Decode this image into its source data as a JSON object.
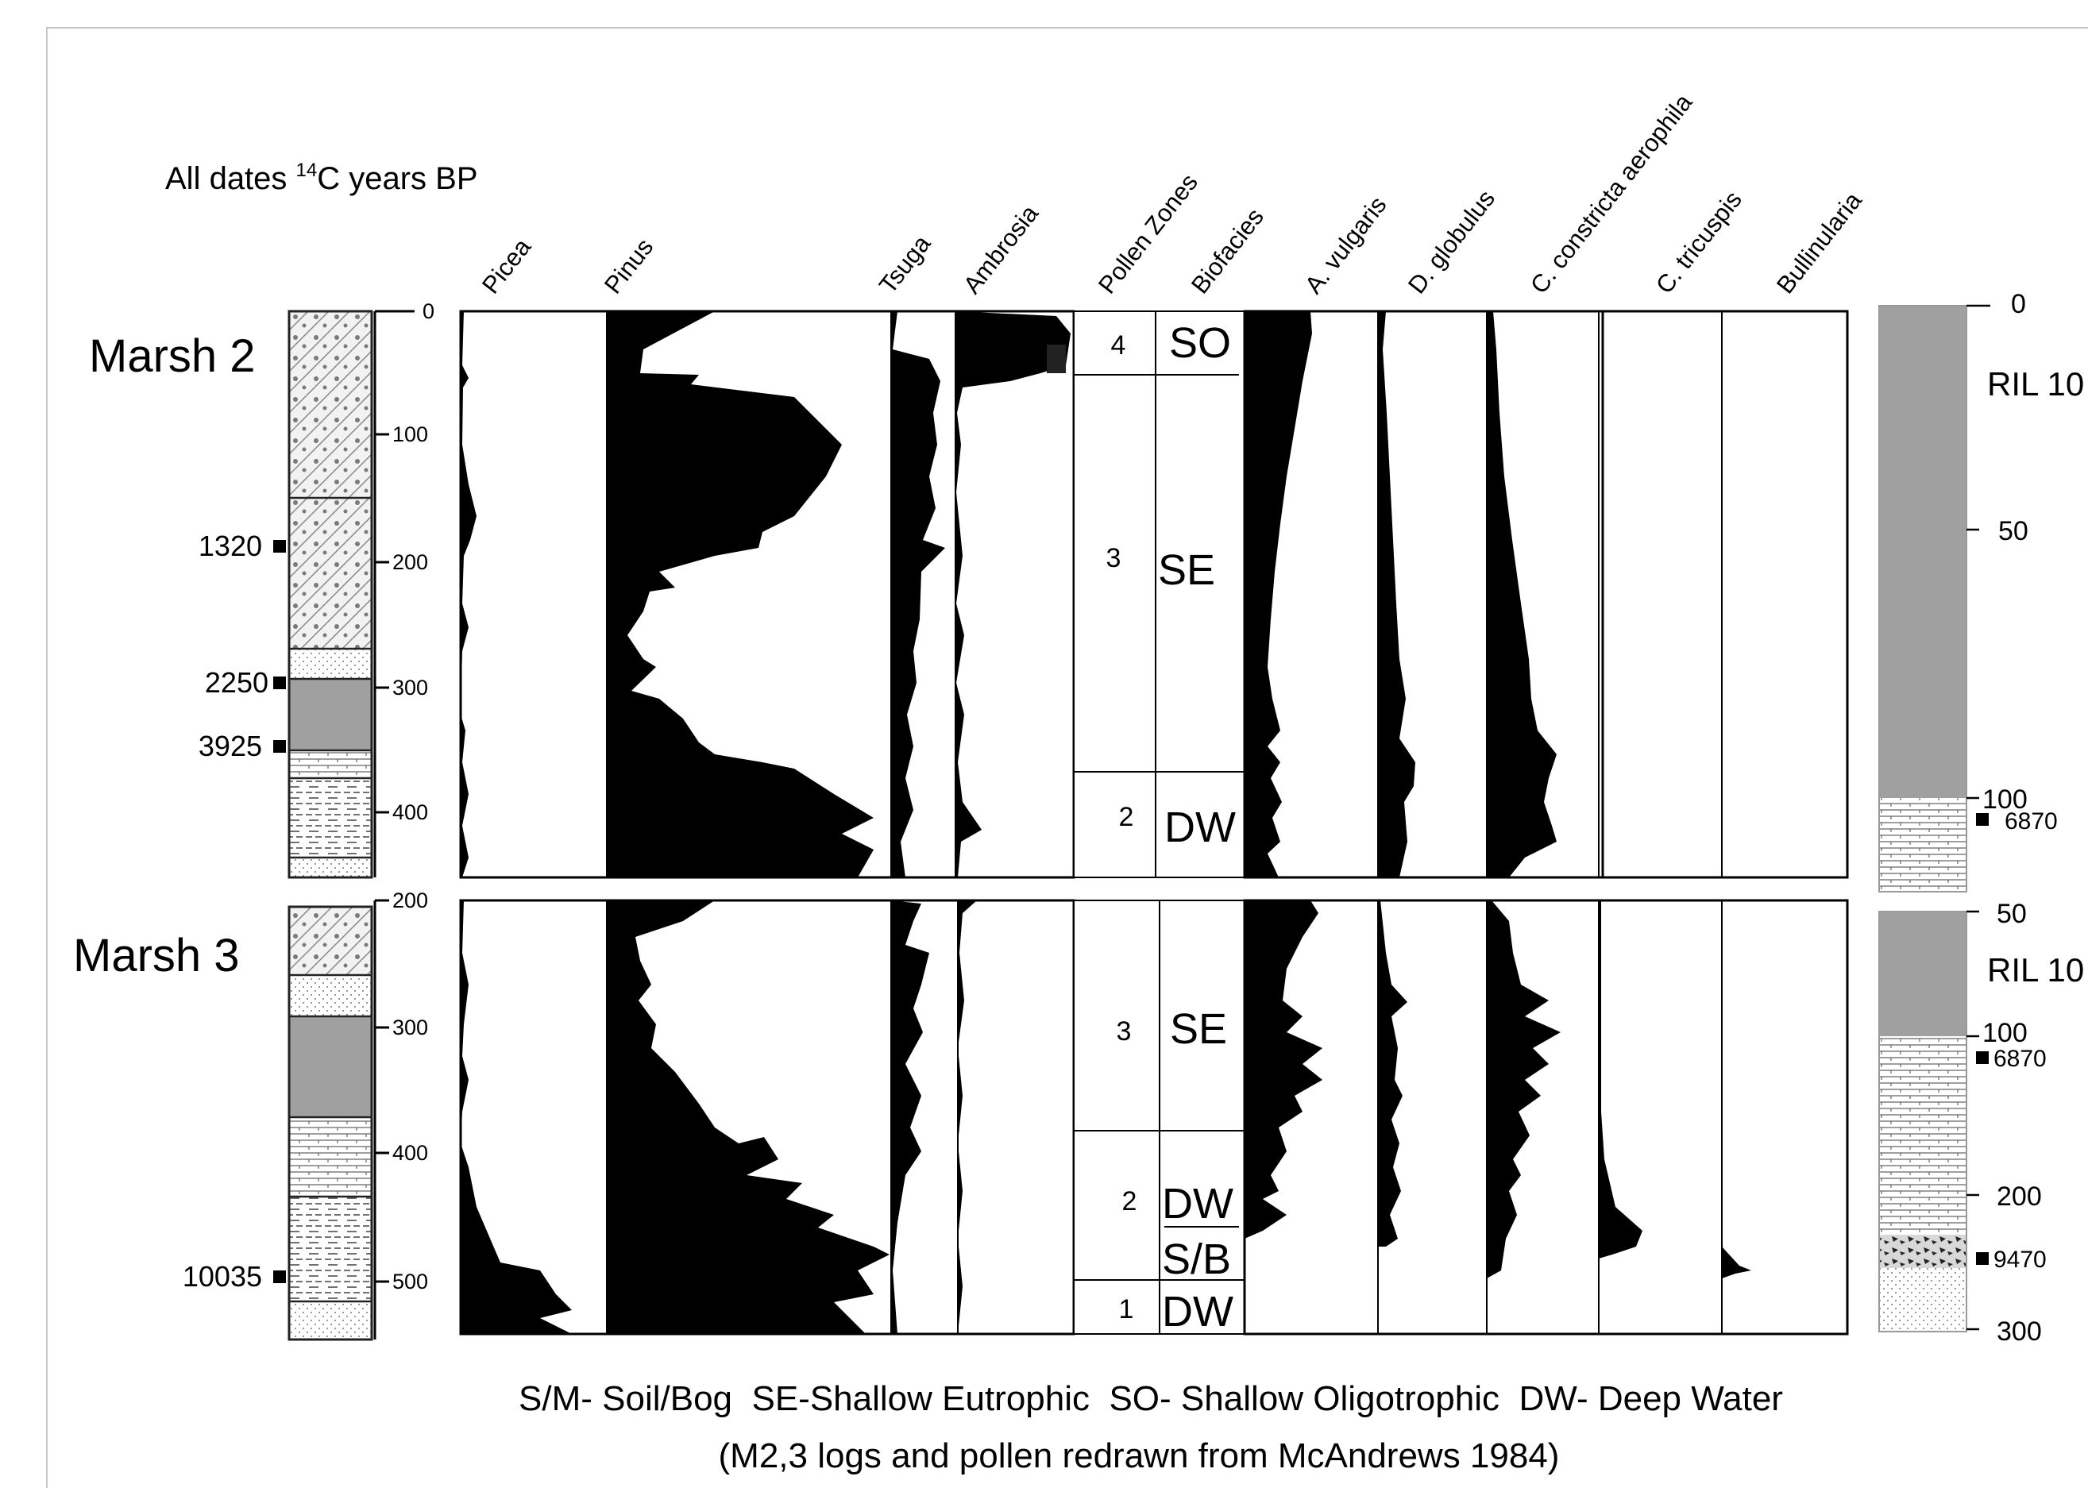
{
  "header": {
    "dates_prefix": "All dates ",
    "dates_sup": "14",
    "dates_suffix": "C years BP"
  },
  "columns": {
    "picea": "Picea",
    "pinus": "Pinus",
    "tsuga": "Tsuga",
    "ambrosia": "Ambrosia",
    "pollen_zones": "Pollen Zones",
    "biofacies": "Biofacies",
    "a_vulgaris": "A. vulgaris",
    "d_globulus": "D. globulus",
    "c_constricta": "C. constricta aerophila",
    "c_tricuspis": "C. tricuspis",
    "bullinularia": "Bullinularia"
  },
  "marsh2": {
    "label": "Marsh 2",
    "depth_ticks": [
      "0",
      "100",
      "200",
      "300",
      "400"
    ],
    "dates": [
      "1320",
      "2250",
      "3925"
    ],
    "zones": [
      "4",
      "3",
      "2"
    ],
    "biofacies": [
      "SO",
      "SE",
      "DW"
    ]
  },
  "marsh3": {
    "label": "Marsh 3",
    "depth_ticks": [
      "200",
      "300",
      "400",
      "500"
    ],
    "dates": [
      "10035"
    ],
    "zones": [
      "3",
      "2",
      "1"
    ],
    "biofacies": [
      "SE",
      "DW",
      "S/B",
      "DW"
    ]
  },
  "ril_top": {
    "label": "RIL 10",
    "ticks": [
      "0",
      "50",
      "100"
    ],
    "date": "6870"
  },
  "ril_bottom": {
    "label": "RIL 10",
    "ticks": [
      "50",
      "100",
      "200",
      "300"
    ],
    "dates": [
      "6870",
      "9470"
    ]
  },
  "footer": {
    "legend": "S/M- Soil/Bog  SE-Shallow Eutrophic  SO- Shallow Oligotrophic  DW- Deep Water",
    "credit": "(M2,3 logs and pollen redrawn from McAndrews 1984)"
  }
}
